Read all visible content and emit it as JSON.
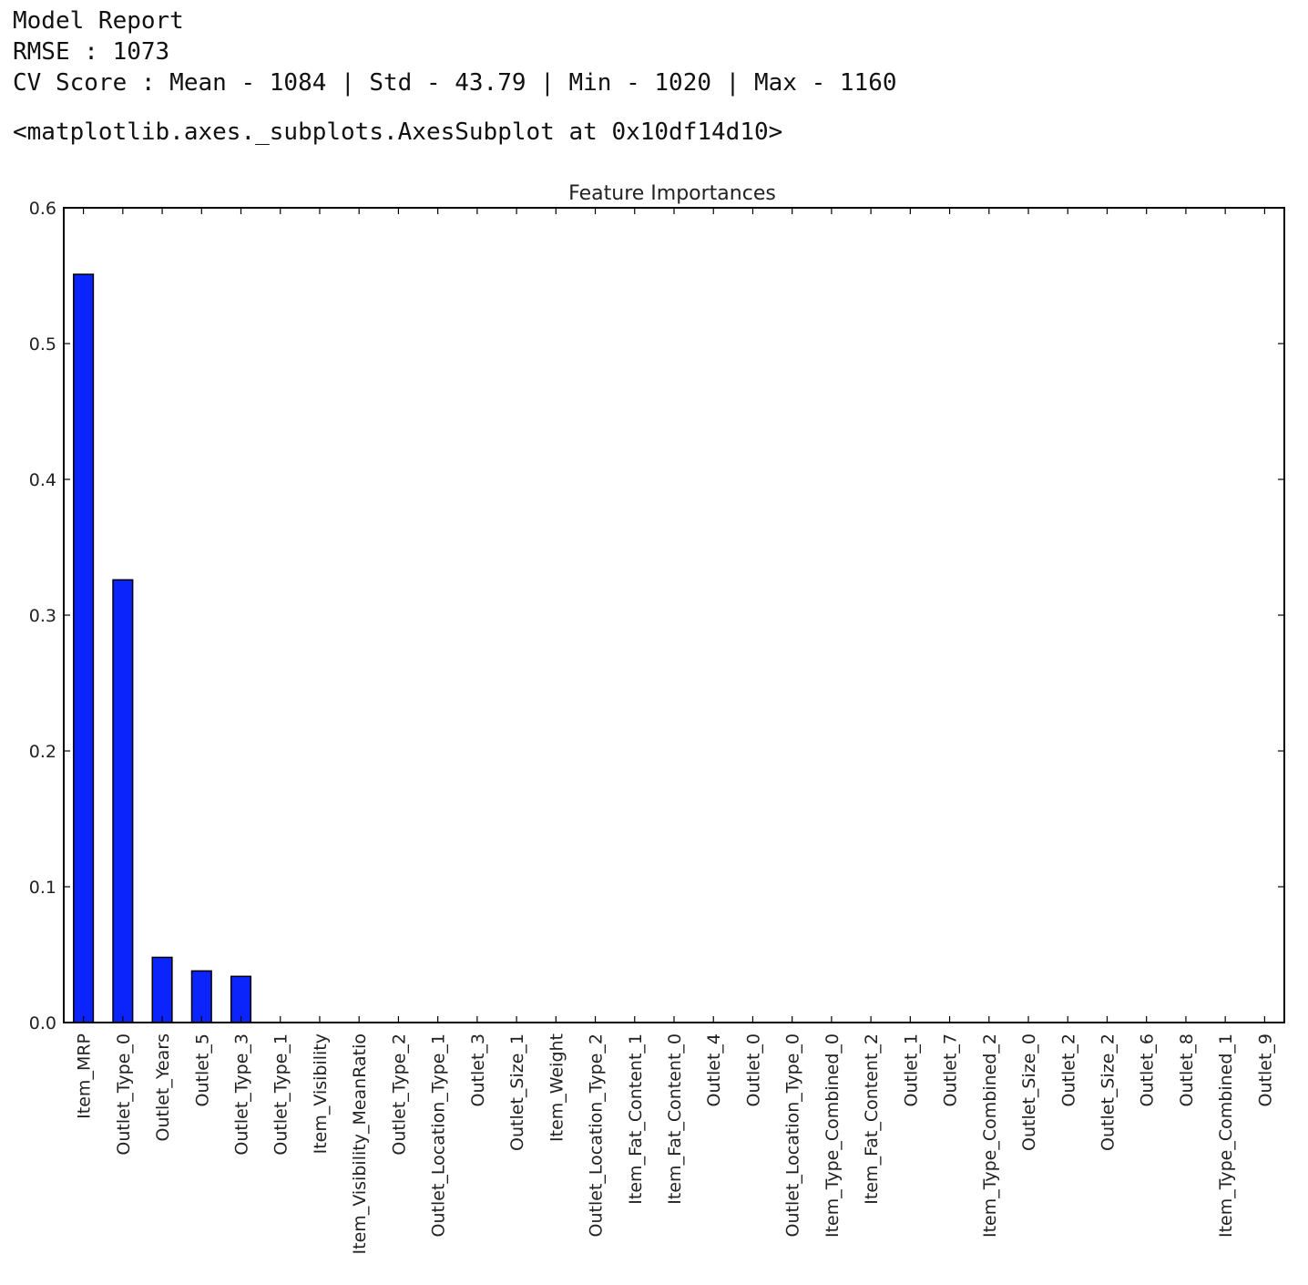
{
  "report": {
    "heading": "Model Report",
    "rmse_line": "RMSE : 1073",
    "cv_line": "CV Score : Mean - 1084 | Std - 43.79 | Min - 1020 | Max - 1160"
  },
  "output_repr": "<matplotlib.axes._subplots.AxesSubplot at 0x10df14d10>",
  "chart_data": {
    "type": "bar",
    "title": "Feature Importances",
    "xlabel": "",
    "ylabel": "",
    "ylim": [
      0,
      0.6
    ],
    "yticks": [
      "0.0",
      "0.1",
      "0.2",
      "0.3",
      "0.4",
      "0.5",
      "0.6"
    ],
    "bar_color": "#0b24fb",
    "grid": false,
    "categories": [
      "Item_MRP",
      "Outlet_Type_0",
      "Outlet_Years",
      "Outlet_5",
      "Outlet_Type_3",
      "Outlet_Type_1",
      "Item_Visibility",
      "Item_Visibility_MeanRatio",
      "Outlet_Type_2",
      "Outlet_Location_Type_1",
      "Outlet_3",
      "Outlet_Size_1",
      "Item_Weight",
      "Outlet_Location_Type_2",
      "Item_Fat_Content_1",
      "Item_Fat_Content_0",
      "Outlet_4",
      "Outlet_0",
      "Outlet_Location_Type_0",
      "Item_Type_Combined_0",
      "Item_Fat_Content_2",
      "Outlet_1",
      "Outlet_7",
      "Item_Type_Combined_2",
      "Outlet_Size_0",
      "Outlet_2",
      "Outlet_Size_2",
      "Outlet_6",
      "Outlet_8",
      "Item_Type_Combined_1",
      "Outlet_9"
    ],
    "values": [
      0.551,
      0.326,
      0.048,
      0.038,
      0.034,
      0,
      0,
      0,
      0,
      0,
      0,
      0,
      0,
      0,
      0,
      0,
      0,
      0,
      0,
      0,
      0,
      0,
      0,
      0,
      0,
      0,
      0,
      0,
      0,
      0,
      0
    ]
  }
}
